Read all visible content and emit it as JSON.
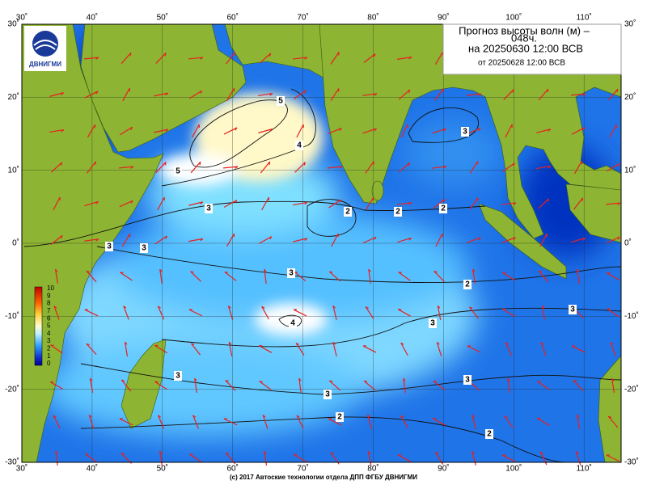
{
  "header": {
    "lines": [
      "Прогноз высоты волн (м) –",
      "048ч.",
      "на 20250630 12:00 ВСВ",
      "от 20250628 12:00 ВСВ"
    ]
  },
  "logo": {
    "label": "ДВНИГМИ"
  },
  "lon_labels": [
    "30˚",
    "40˚",
    "50˚",
    "60˚",
    "70˚",
    "80˚",
    "90˚",
    "100˚",
    "110˚"
  ],
  "lat_labels": [
    "30˚",
    "20˚",
    "10˚",
    "0˚",
    "-10˚",
    "-20˚",
    "-30˚"
  ],
  "colorbar": {
    "labels": [
      "10",
      "9",
      "8",
      "7",
      "6",
      "5",
      "4",
      "3",
      "2",
      "1",
      "0"
    ]
  },
  "contour_labels": [
    "5",
    "4",
    "5",
    "3",
    "3",
    "3",
    "3",
    "2",
    "2",
    "2",
    "3",
    "2",
    "3",
    "4",
    "3",
    "3",
    "3",
    "3",
    "2",
    "2"
  ],
  "footer": "(c) 2017 Автоские технологии отдела ДПП ФГБУ ДВНИГМИ"
}
